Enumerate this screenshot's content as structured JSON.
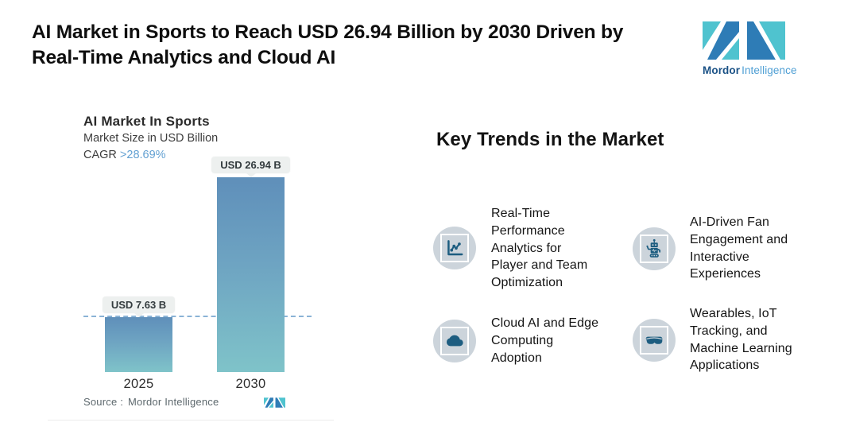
{
  "header": {
    "title_line1": "AI Market in Sports to Reach USD 26.94 Billion by 2030 Driven by",
    "title_line2": "Real-Time Analytics and Cloud AI",
    "brand": {
      "name_bold": "Mordor",
      "name_light": "Intelligence"
    }
  },
  "chart_data": {
    "type": "bar",
    "title": "AI Market In Sports",
    "subtitle": "Market Size in USD Billion",
    "cagr_label": "CAGR",
    "cagr_value": ">28.69%",
    "categories": [
      "2025",
      "2030"
    ],
    "values": [
      7.63,
      26.94
    ],
    "unit": "USD Billion",
    "bar_labels": [
      "USD 7.63 B",
      "USD 26.94 B"
    ],
    "reference_line_value": 7.63,
    "ylim": [
      0,
      28
    ],
    "grid": false,
    "legend": "none",
    "bar_gradient": [
      "#5f8fba",
      "#7fc3c9"
    ],
    "dashed_line_color": "#8ab3d6",
    "source_label": "Source :",
    "source_value": "Mordor Intelligence"
  },
  "trends": {
    "heading": "Key Trends in the Market",
    "items": [
      {
        "icon": "line-chart-icon",
        "label": "Real-Time\nPerformance\nAnalytics for\nPlayer and Team\nOptimization"
      },
      {
        "icon": "robot-icon",
        "label": "AI-Driven Fan\nEngagement and\nInteractive\nExperiences"
      },
      {
        "icon": "cloud-icon",
        "label": "Cloud AI and Edge\nComputing\nAdoption"
      },
      {
        "icon": "goggles-icon",
        "label": "Wearables, IoT\nTracking, and\nMachine Learning\nApplications"
      }
    ]
  },
  "colors": {
    "logo_teal": "#4fc3cf",
    "logo_blue": "#2e7cb6",
    "trend_icon": "#1d5d80",
    "trend_icon_circle": "#ccd4db",
    "cagr_accent": "#62a0d2"
  }
}
